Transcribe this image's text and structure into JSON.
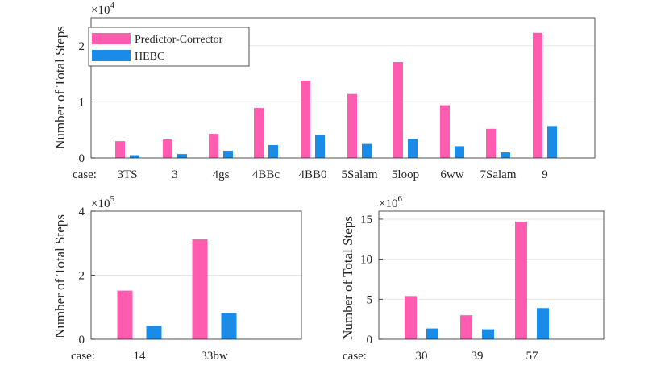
{
  "colors": {
    "predictor": "#FF5CB0",
    "hebc": "#1A8CE8",
    "axis": "#262626",
    "grid": "#E6E6E6"
  },
  "chart_data": [
    {
      "type": "bar",
      "ylabel": "Number of Total Steps",
      "x_prefix": "case:",
      "exponent_label": "×10",
      "exponent_power": "4",
      "ylim": [
        0,
        2.5
      ],
      "yticks": [
        0,
        1,
        2
      ],
      "ytick_labels": [
        "0",
        "1",
        "2"
      ],
      "grid": "horizontal",
      "legend_position": "top-left",
      "categories": [
        "3TS",
        "3",
        "4gs",
        "4BBc",
        "4BB0",
        "5Salam",
        "5loop",
        "6ww",
        "7Salam",
        "9"
      ],
      "series": [
        {
          "name": "Predictor-Corrector",
          "values": [
            0.3,
            0.33,
            0.43,
            0.89,
            1.38,
            1.14,
            1.71,
            0.94,
            0.52,
            2.23
          ]
        },
        {
          "name": "HEBC",
          "values": [
            0.05,
            0.07,
            0.13,
            0.23,
            0.41,
            0.25,
            0.34,
            0.21,
            0.1,
            0.57
          ]
        }
      ]
    },
    {
      "type": "bar",
      "ylabel": "Number of Total Steps",
      "x_prefix": "case:",
      "exponent_label": "×10",
      "exponent_power": "5",
      "ylim": [
        0,
        4
      ],
      "yticks": [
        0,
        2,
        4
      ],
      "ytick_labels": [
        "0",
        "2",
        "4"
      ],
      "grid": "horizontal",
      "categories": [
        "14",
        "33bw"
      ],
      "series": [
        {
          "name": "Predictor-Corrector",
          "values": [
            1.52,
            3.12
          ]
        },
        {
          "name": "HEBC",
          "values": [
            0.42,
            0.82
          ]
        }
      ]
    },
    {
      "type": "bar",
      "ylabel": "Number of Total Steps",
      "x_prefix": "case:",
      "exponent_label": "×10",
      "exponent_power": "6",
      "ylim": [
        0,
        16
      ],
      "yticks": [
        0,
        5,
        10,
        15
      ],
      "ytick_labels": [
        "0",
        "5",
        "10",
        "15"
      ],
      "grid": "horizontal",
      "categories": [
        "30",
        "39",
        "57"
      ],
      "series": [
        {
          "name": "Predictor-Corrector",
          "values": [
            5.4,
            3.0,
            14.7
          ]
        },
        {
          "name": "HEBC",
          "values": [
            1.35,
            1.25,
            3.9
          ]
        }
      ]
    }
  ]
}
